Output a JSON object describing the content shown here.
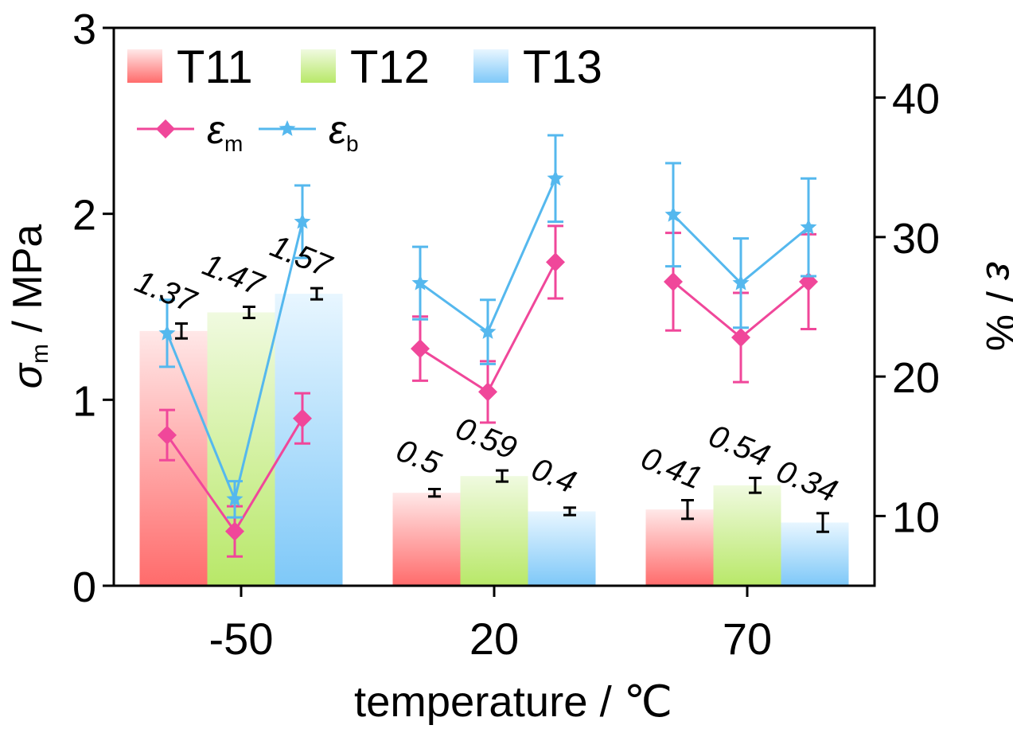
{
  "chart_data": {
    "type": "bar",
    "xlabel": "temperature / ℃",
    "ylabel_left_main": "σ",
    "ylabel_left_sub": "m",
    "ylabel_left_unit": " / MPa",
    "ylabel_right_main": "ε",
    "ylabel_right_unit": " / %",
    "categories": [
      "-50",
      "20",
      "70"
    ],
    "ylim_left": [
      0,
      3
    ],
    "yticks_left": [
      "0",
      "1",
      "2",
      "3"
    ],
    "ylim_right": [
      5,
      45
    ],
    "yticks_right": [
      "10",
      "20",
      "30",
      "40"
    ],
    "bar_series": [
      {
        "name": "T11",
        "values": [
          1.37,
          0.5,
          0.41
        ],
        "errors": [
          0.04,
          0.02,
          0.05
        ],
        "labels": [
          "1.37",
          "0.5",
          "0.41"
        ],
        "color_top": "#ffe8e8",
        "color_bottom": "#ff6b6b"
      },
      {
        "name": "T12",
        "values": [
          1.47,
          0.59,
          0.54
        ],
        "errors": [
          0.03,
          0.03,
          0.04
        ],
        "labels": [
          "1.47",
          "0.59",
          "0.54"
        ],
        "color_top": "#f0fae0",
        "color_bottom": "#b8e868"
      },
      {
        "name": "T13",
        "values": [
          1.57,
          0.4,
          0.34
        ],
        "errors": [
          0.03,
          0.02,
          0.05
        ],
        "labels": [
          "1.57",
          "0.4",
          "0.34"
        ],
        "color_top": "#e8f6ff",
        "color_bottom": "#7ec8f8"
      }
    ],
    "line_series": [
      {
        "name": "ε",
        "sub": "m",
        "marker": "diamond",
        "color": "#f0479a",
        "values": [
          [
            15.8,
            8.9,
            17.0
          ],
          [
            22.0,
            18.9,
            28.2
          ],
          [
            26.8,
            22.8,
            26.8
          ]
        ],
        "errors": [
          [
            1.8,
            1.8,
            1.8
          ],
          [
            2.3,
            2.2,
            2.6
          ],
          [
            3.5,
            3.2,
            3.4
          ]
        ]
      },
      {
        "name": "ε",
        "sub": "b",
        "marker": "star",
        "color": "#55b8ee",
        "values": [
          [
            23.1,
            11.2,
            31.1
          ],
          [
            26.7,
            23.2,
            34.2
          ],
          [
            31.6,
            26.7,
            30.7
          ]
        ],
        "errors": [
          [
            2.4,
            1.3,
            2.6
          ],
          [
            2.6,
            2.3,
            3.1
          ],
          [
            3.7,
            3.2,
            3.5
          ]
        ]
      }
    ],
    "legend_position": "top-left",
    "grid": false
  }
}
